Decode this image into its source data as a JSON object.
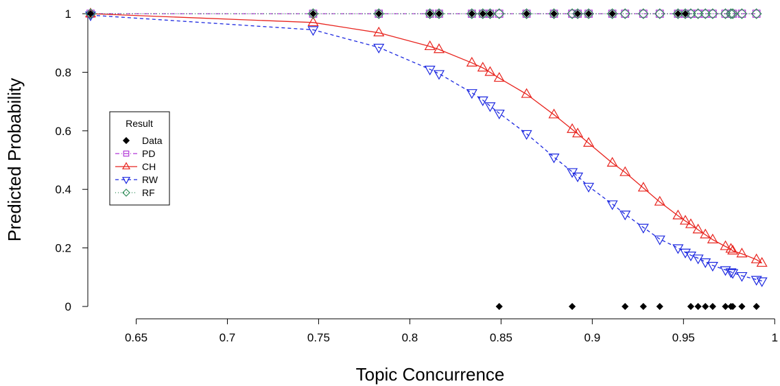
{
  "chart_data": {
    "type": "scatter",
    "title": "",
    "xlabel": "Topic Concurrence",
    "ylabel": "Predicted Probability",
    "xlim": [
      0.625,
      0.995
    ],
    "ylim": [
      0,
      1
    ],
    "x_ticks": [
      0.65,
      0.7,
      0.75,
      0.8,
      0.85,
      0.9,
      0.95,
      1
    ],
    "x_tick_labels": [
      "0.65",
      "0.7",
      "0.75",
      "0.8",
      "0.85",
      "0.9",
      "0.95",
      "1"
    ],
    "y_ticks": [
      0,
      0.2,
      0.4,
      0.6,
      0.8,
      1
    ],
    "y_tick_labels": [
      "0",
      "0.2",
      "0.4",
      "0.6",
      "0.8",
      "1"
    ],
    "grid": false,
    "legend": {
      "title": "Result",
      "placement": "left-middle",
      "entries": [
        "Data",
        "PD",
        "CH",
        "RW",
        "RF"
      ]
    },
    "colors": {
      "Data": "#000000",
      "PD": "#b035d6",
      "CH": "#e8231d",
      "RW": "#1b27e0",
      "RF": "#2e8b57"
    },
    "data_points": {
      "name": "Data",
      "x": [
        0.625,
        0.747,
        0.783,
        0.811,
        0.816,
        0.834,
        0.84,
        0.844,
        0.849,
        0.864,
        0.879,
        0.889,
        0.892,
        0.898,
        0.911,
        0.918,
        0.928,
        0.937,
        0.947,
        0.951,
        0.954,
        0.958,
        0.962,
        0.966,
        0.973,
        0.976,
        0.977,
        0.982,
        0.99
      ],
      "y": [
        1,
        1,
        1,
        1,
        1,
        1,
        1,
        1,
        0,
        1,
        1,
        0,
        1,
        1,
        1,
        0,
        0,
        0,
        1,
        1,
        0,
        0,
        0,
        0,
        0,
        0,
        0,
        0,
        0
      ]
    },
    "series": [
      {
        "name": "PD",
        "marker": "square",
        "x": [
          0.625,
          0.747,
          0.783,
          0.811,
          0.816,
          0.834,
          0.84,
          0.844,
          0.849,
          0.864,
          0.879,
          0.889,
          0.892,
          0.898,
          0.911,
          0.918,
          0.928,
          0.937,
          0.947,
          0.951,
          0.954,
          0.958,
          0.962,
          0.966,
          0.973,
          0.976,
          0.977,
          0.982,
          0.99
        ],
        "y": [
          1,
          1,
          1,
          1,
          1,
          1,
          1,
          1,
          1,
          1,
          1,
          1,
          1,
          1,
          1,
          1,
          1,
          1,
          1,
          1,
          1,
          1,
          1,
          1,
          1,
          1,
          1,
          1,
          1
        ]
      },
      {
        "name": "CH",
        "marker": "triangle-up",
        "x": [
          0.625,
          0.747,
          0.783,
          0.811,
          0.816,
          0.834,
          0.84,
          0.844,
          0.849,
          0.864,
          0.879,
          0.889,
          0.892,
          0.898,
          0.911,
          0.918,
          0.928,
          0.937,
          0.947,
          0.951,
          0.954,
          0.958,
          0.962,
          0.966,
          0.973,
          0.976,
          0.977,
          0.982,
          0.99,
          0.993
        ],
        "y": [
          1.0,
          0.97,
          0.935,
          0.888,
          0.878,
          0.832,
          0.815,
          0.8,
          0.78,
          0.725,
          0.655,
          0.605,
          0.59,
          0.558,
          0.49,
          0.458,
          0.405,
          0.357,
          0.31,
          0.292,
          0.28,
          0.262,
          0.245,
          0.228,
          0.205,
          0.196,
          0.19,
          0.18,
          0.16,
          0.148
        ]
      },
      {
        "name": "RW",
        "marker": "triangle-down",
        "x": [
          0.625,
          0.747,
          0.783,
          0.811,
          0.816,
          0.834,
          0.84,
          0.844,
          0.849,
          0.864,
          0.879,
          0.889,
          0.892,
          0.898,
          0.911,
          0.918,
          0.928,
          0.937,
          0.947,
          0.951,
          0.954,
          0.958,
          0.962,
          0.966,
          0.973,
          0.976,
          0.977,
          0.982,
          0.99,
          0.993
        ],
        "y": [
          0.995,
          0.945,
          0.885,
          0.81,
          0.795,
          0.73,
          0.705,
          0.685,
          0.66,
          0.59,
          0.51,
          0.46,
          0.445,
          0.41,
          0.35,
          0.315,
          0.27,
          0.23,
          0.2,
          0.185,
          0.175,
          0.165,
          0.152,
          0.14,
          0.125,
          0.118,
          0.115,
          0.105,
          0.092,
          0.087
        ]
      },
      {
        "name": "RF",
        "marker": "diamond",
        "x": [
          0.625,
          0.747,
          0.783,
          0.811,
          0.816,
          0.834,
          0.84,
          0.844,
          0.849,
          0.864,
          0.879,
          0.889,
          0.892,
          0.898,
          0.911,
          0.918,
          0.928,
          0.937,
          0.947,
          0.951,
          0.954,
          0.958,
          0.962,
          0.966,
          0.973,
          0.976,
          0.977,
          0.982,
          0.99
        ],
        "y": [
          1,
          1,
          1,
          1,
          1,
          1,
          1,
          1,
          1,
          1,
          1,
          1,
          1,
          1,
          1,
          1,
          1,
          1,
          1,
          1,
          1,
          1,
          1,
          1,
          1,
          1,
          1,
          1,
          1
        ]
      }
    ]
  }
}
